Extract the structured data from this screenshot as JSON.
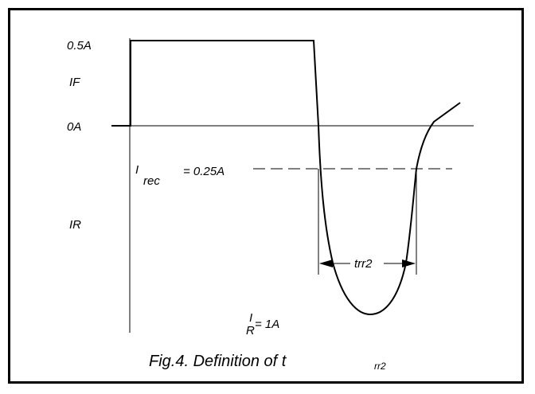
{
  "figure": {
    "labels": {
      "level_high": "0.5A",
      "forward_current": "IF",
      "level_zero": "0A",
      "i_rec_prefix": "I",
      "i_rec_subscript": "rec",
      "i_rec_value": "= 0.25A",
      "reverse_current": "IR",
      "i_r_prefix": "I",
      "i_r_subscript": "R",
      "i_r_value": "= 1A",
      "trr_marker": "trr2"
    },
    "caption": {
      "text": "Fig.4.  Definition of t",
      "subscript": "rr2"
    },
    "colors": {
      "line": "#000000",
      "frame": "#000000",
      "background": "#ffffff"
    }
  }
}
